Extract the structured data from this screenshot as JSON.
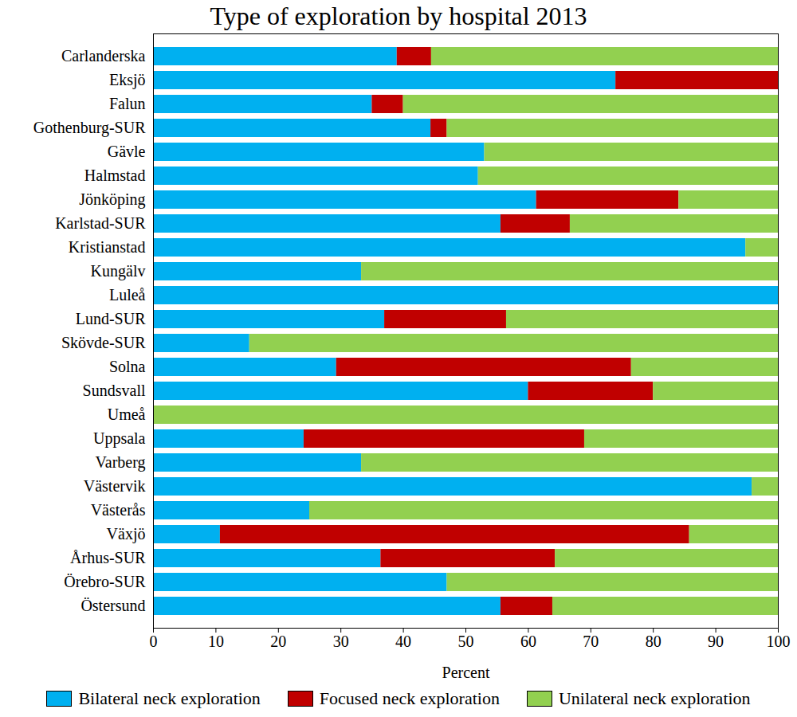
{
  "chart_data": {
    "type": "bar",
    "orientation": "horizontal",
    "stacked": true,
    "title": "Type of exploration by hospital 2013",
    "xlabel": "Percent",
    "categories": [
      "Carlanderska",
      "Eksjö",
      "Falun",
      "Gothenburg-SUR",
      "Gävle",
      "Halmstad",
      "Jönköping",
      "Karlstad-SUR",
      "Kristianstad",
      "Kungälv",
      "Luleå",
      "Lund-SUR",
      "Skövde-SUR",
      "Solna",
      "Sundsvall",
      "Umeå",
      "Uppsala",
      "Varberg",
      "Västervik",
      "Västerås",
      "Växjö",
      "Århus-SUR",
      "Örebro-SUR",
      "Östersund"
    ],
    "series": [
      {
        "name": "Bilateral neck exploration",
        "color": "#00b0f0",
        "values": [
          39,
          74,
          35,
          44.4,
          53,
          52,
          61.3,
          55.6,
          94.8,
          33.3,
          100,
          37,
          15.4,
          29.3,
          60,
          0,
          24.1,
          33.3,
          95.8,
          25,
          10.7,
          36.4,
          47,
          55.6
        ]
      },
      {
        "name": "Focused neck exploration",
        "color": "#c00000",
        "values": [
          5.5,
          26,
          5,
          2.6,
          0,
          0,
          22.8,
          11.1,
          0,
          0,
          0,
          19.5,
          0,
          47.2,
          20,
          0,
          44.9,
          0,
          0,
          0,
          75.1,
          27.9,
          0,
          8.3
        ]
      },
      {
        "name": "Unilateral neck exploration",
        "color": "#92d050",
        "values": [
          55.5,
          0,
          60,
          53,
          47,
          48,
          15.9,
          33.3,
          5.2,
          66.7,
          0,
          43.5,
          84.6,
          23.5,
          20,
          100,
          31,
          66.7,
          4.2,
          75,
          14.2,
          35.7,
          53,
          36.1
        ]
      }
    ],
    "xlim": [
      0,
      100
    ],
    "xticks": [
      0,
      10,
      20,
      30,
      40,
      50,
      60,
      70,
      80,
      90,
      100
    ],
    "legend": "bottom",
    "grid": false
  }
}
